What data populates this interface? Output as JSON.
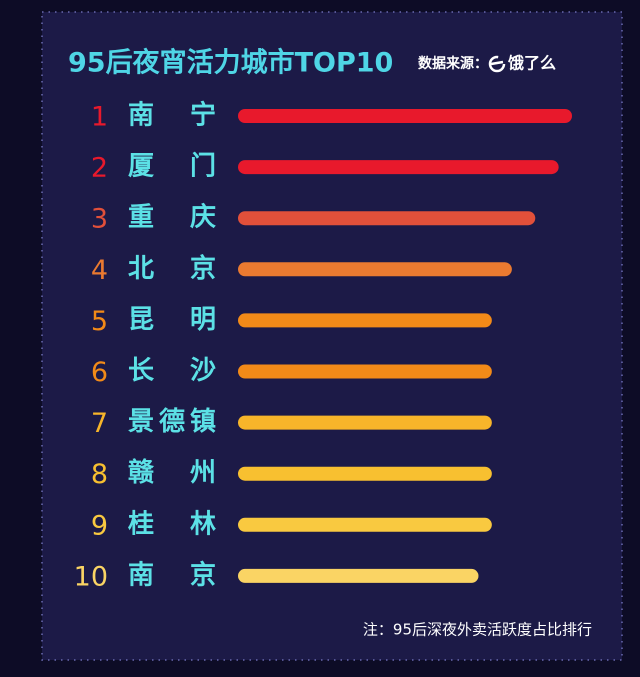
{
  "chart_data": {
    "type": "bar",
    "orientation": "horizontal",
    "title": "95后夜宵活力城市TOP10",
    "source_label": "数据来源：",
    "source": "饿了么",
    "note": "注：95后深夜外卖活跃度占比排行",
    "ranks": [
      1,
      2,
      3,
      4,
      5,
      6,
      7,
      8,
      9,
      10
    ],
    "categories": [
      "南宁",
      "厦门",
      "重庆",
      "北京",
      "昆明",
      "长沙",
      "景德镇",
      "赣州",
      "桂林",
      "南京"
    ],
    "values": [
      100,
      96,
      89,
      82,
      76,
      76,
      76,
      76,
      76,
      72
    ],
    "colors": [
      "#e8192c",
      "#e8192c",
      "#e2503a",
      "#ea7a30",
      "#f28a18",
      "#f28a18",
      "#f7b52a",
      "#f8c030",
      "#f9c940",
      "#fad464"
    ],
    "xlim": [
      0,
      100
    ]
  }
}
